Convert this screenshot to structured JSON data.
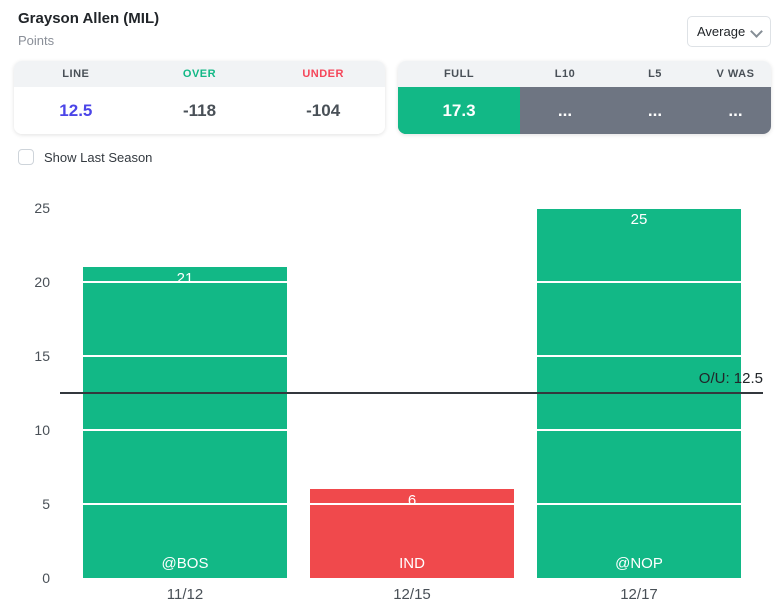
{
  "header": {
    "player_name": "Grayson Allen (MIL)",
    "stat_name": "Points",
    "aggregation_selected": "Average"
  },
  "icons": {
    "dropdown_chevron": "chevron-down"
  },
  "odds_panel": {
    "columns": [
      "LINE",
      "OVER",
      "UNDER"
    ],
    "line_value": "12.5",
    "over_odds": "-118",
    "under_odds": "-104"
  },
  "splits_panel": {
    "columns": [
      "FULL",
      "L10",
      "L5",
      "V WAS"
    ],
    "full_value": "17.3",
    "l10_value": "...",
    "l5_value": "...",
    "vwas_value": "..."
  },
  "controls": {
    "show_last_season_label": "Show Last Season",
    "show_last_season_checked": false
  },
  "colors": {
    "bar_green": "#12b886",
    "bar_red": "#f0494c",
    "split_gray": "#6e7582",
    "over_green": "#12b886",
    "under_red": "#f5465a",
    "line_blue": "#4b45e8",
    "ou_line": "#33383d",
    "header_bg": "#f1f3f5"
  },
  "chart_data": {
    "type": "bar",
    "title": "",
    "xlabel": "",
    "ylabel": "",
    "categories": [
      "11/12",
      "12/15",
      "12/17"
    ],
    "values": [
      21,
      6,
      25
    ],
    "value_labels": [
      "21",
      "6",
      "25"
    ],
    "bar_labels": [
      "@BOS",
      "IND",
      "@NOP"
    ],
    "bar_colors": [
      "#12b886",
      "#f0494c",
      "#12b886"
    ],
    "yticks": [
      0,
      5,
      10,
      15,
      20,
      25
    ],
    "ylim": [
      0,
      25
    ],
    "grid": "white-lines-over-bars",
    "legend": "none",
    "reference_line": {
      "value": 12.5,
      "label": "O/U: 12.5",
      "color": "#33383d"
    }
  }
}
